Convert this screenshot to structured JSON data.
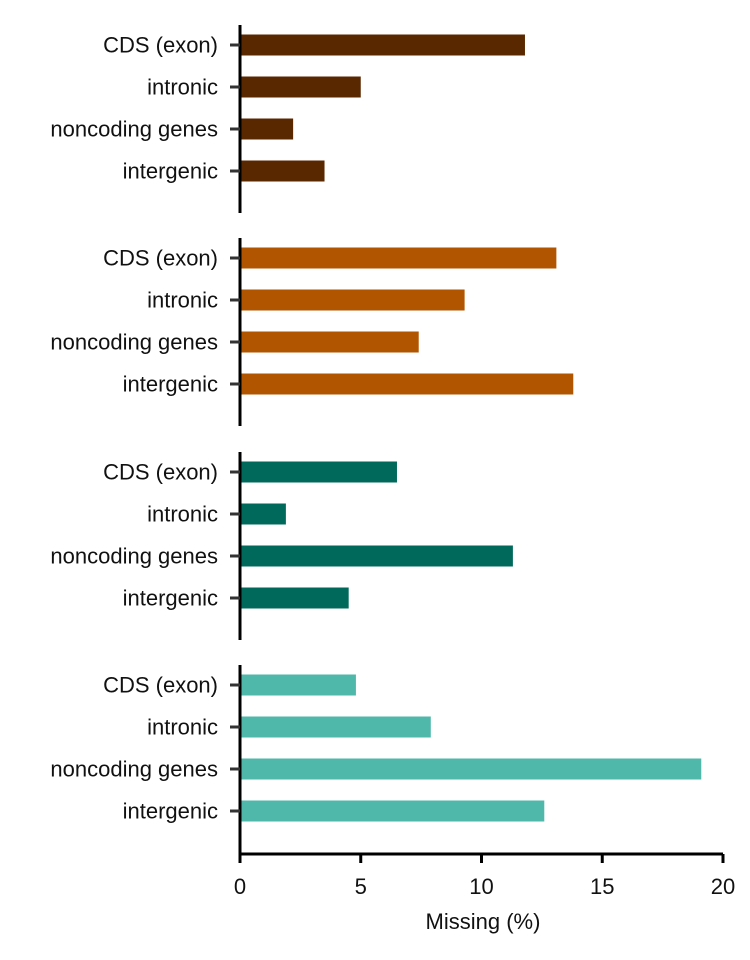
{
  "chart_data": {
    "type": "bar",
    "orientation": "horizontal",
    "layout": "stacked panels sharing x-axis",
    "categories": [
      "CDS (exon)",
      "intronic",
      "noncoding genes",
      "intergenic"
    ],
    "xlabel": "Missing (%)",
    "xlim": [
      0,
      20
    ],
    "xticks": [
      "0",
      "5",
      "10",
      "15",
      "20"
    ],
    "grid": false,
    "panels": [
      {
        "color": "#5a2800",
        "values": [
          11.8,
          5.0,
          2.2,
          3.5
        ]
      },
      {
        "color": "#b15500",
        "values": [
          13.1,
          9.3,
          7.4,
          13.8
        ]
      },
      {
        "color": "#00695c",
        "values": [
          6.5,
          1.9,
          11.3,
          4.5
        ]
      },
      {
        "color": "#4fb8aa",
        "values": [
          4.8,
          7.9,
          19.1,
          12.6
        ]
      }
    ]
  }
}
